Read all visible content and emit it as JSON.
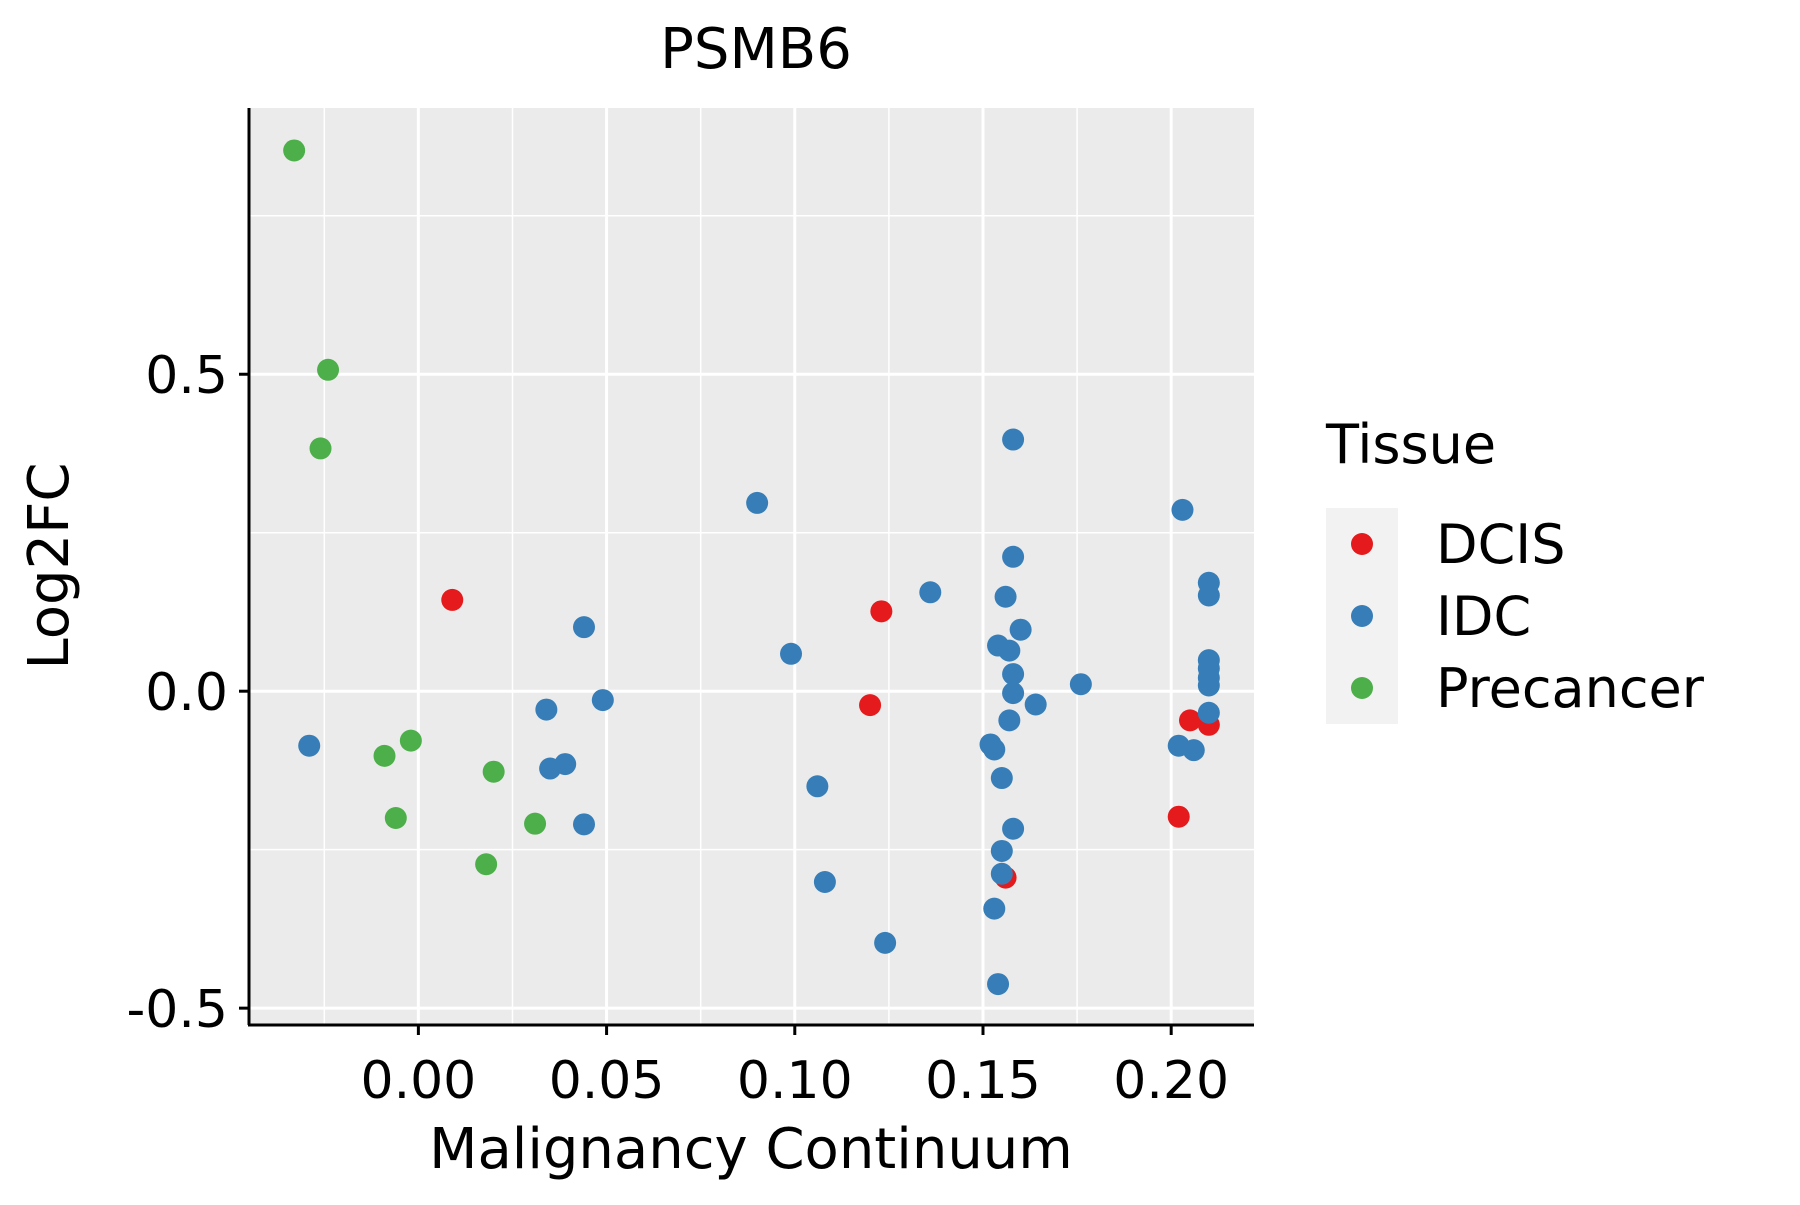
{
  "chart_data": {
    "type": "scatter",
    "title": "PSMB6",
    "xlabel": "Malignancy Continuum",
    "ylabel": "Log2FC",
    "xlim": [
      -0.045,
      0.222
    ],
    "ylim": [
      -0.525,
      0.92
    ],
    "x_ticks": [
      0.0,
      0.05,
      0.1,
      0.15,
      0.2
    ],
    "x_tick_labels": [
      "0.00",
      "0.05",
      "0.10",
      "0.15",
      "0.20"
    ],
    "y_ticks": [
      -0.5,
      0.0,
      0.5
    ],
    "y_tick_labels": [
      "-0.5",
      "0.0",
      "0.5"
    ],
    "grid": true,
    "legend": {
      "title": "Tissue",
      "position": "right",
      "entries": [
        {
          "label": "DCIS",
          "color": "#E41A1C"
        },
        {
          "label": "IDC",
          "color": "#377EB8"
        },
        {
          "label": "Precancer",
          "color": "#4DAF4A"
        }
      ]
    },
    "series": [
      {
        "name": "DCIS",
        "color": "#E41A1C",
        "points": [
          [
            0.009,
            0.144
          ],
          [
            0.123,
            0.126
          ],
          [
            0.12,
            -0.022
          ],
          [
            0.156,
            -0.294
          ],
          [
            0.202,
            -0.198
          ],
          [
            0.205,
            -0.046
          ],
          [
            0.21,
            -0.053
          ]
        ]
      },
      {
        "name": "IDC",
        "color": "#377EB8",
        "points": [
          [
            -0.029,
            -0.086
          ],
          [
            0.034,
            -0.029
          ],
          [
            0.035,
            -0.122
          ],
          [
            0.039,
            -0.115
          ],
          [
            0.044,
            0.101
          ],
          [
            0.044,
            -0.21
          ],
          [
            0.049,
            -0.014
          ],
          [
            0.09,
            0.297
          ],
          [
            0.099,
            0.059
          ],
          [
            0.106,
            -0.15
          ],
          [
            0.108,
            -0.301
          ],
          [
            0.124,
            -0.397
          ],
          [
            0.136,
            0.156
          ],
          [
            0.152,
            -0.084
          ],
          [
            0.153,
            -0.092
          ],
          [
            0.153,
            -0.343
          ],
          [
            0.154,
            -0.462
          ],
          [
            0.154,
            0.072
          ],
          [
            0.155,
            -0.137
          ],
          [
            0.155,
            -0.252
          ],
          [
            0.155,
            -0.288
          ],
          [
            0.156,
            0.149
          ],
          [
            0.157,
            0.064
          ],
          [
            0.157,
            -0.046
          ],
          [
            0.158,
            0.397
          ],
          [
            0.158,
            0.212
          ],
          [
            0.158,
            0.027
          ],
          [
            0.158,
            -0.003
          ],
          [
            0.158,
            -0.217
          ],
          [
            0.16,
            0.097
          ],
          [
            0.164,
            -0.021
          ],
          [
            0.176,
            0.011
          ],
          [
            0.202,
            -0.086
          ],
          [
            0.203,
            0.286
          ],
          [
            0.206,
            -0.093
          ],
          [
            0.21,
            0.171
          ],
          [
            0.21,
            0.151
          ],
          [
            0.21,
            0.049
          ],
          [
            0.21,
            0.036
          ],
          [
            0.21,
            0.021
          ],
          [
            0.21,
            0.009
          ],
          [
            0.21,
            -0.034
          ]
        ]
      },
      {
        "name": "Precancer",
        "color": "#4DAF4A",
        "points": [
          [
            -0.033,
            0.853
          ],
          [
            -0.024,
            0.507
          ],
          [
            -0.026,
            0.383
          ],
          [
            -0.009,
            -0.102
          ],
          [
            -0.002,
            -0.078
          ],
          [
            -0.006,
            -0.2
          ],
          [
            0.02,
            -0.127
          ],
          [
            0.018,
            -0.273
          ],
          [
            0.031,
            -0.209
          ]
        ]
      }
    ]
  }
}
